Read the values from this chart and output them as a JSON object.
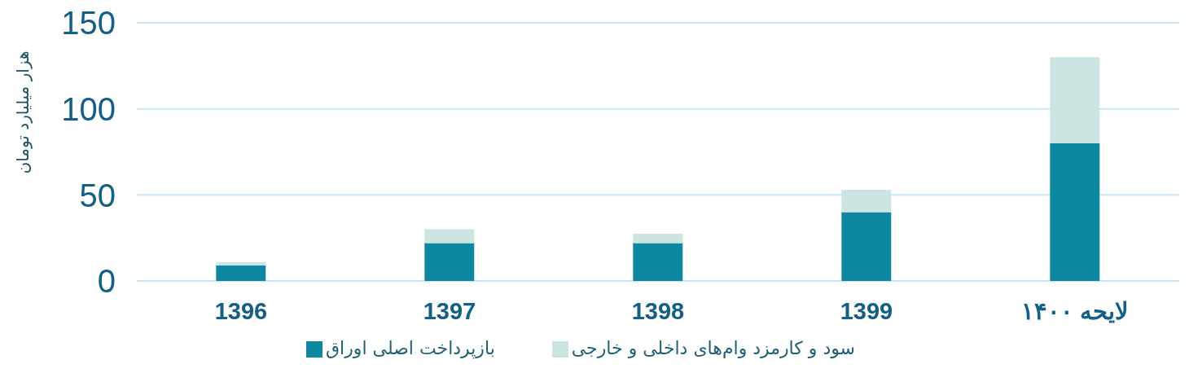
{
  "chart_data": {
    "type": "bar",
    "stacked": true,
    "ylabel": "هزار میلیارد تومان",
    "categories": [
      "1396",
      "1397",
      "1398",
      "1399",
      "لایحه ۱۴۰۰"
    ],
    "series": [
      {
        "name": "بازپرداخت اصلی اوراق",
        "color": "#0e87a0",
        "values": [
          9,
          22,
          22,
          40,
          80
        ]
      },
      {
        "name": "سود و کارمزد وام‌های داخلی و خارجی",
        "color": "#cde5e2",
        "values": [
          2,
          8,
          5.5,
          13,
          50
        ]
      }
    ],
    "ylim": [
      0,
      150
    ],
    "yticks": [
      0,
      50,
      100,
      150
    ],
    "grid": "y",
    "legend": "bottom"
  }
}
